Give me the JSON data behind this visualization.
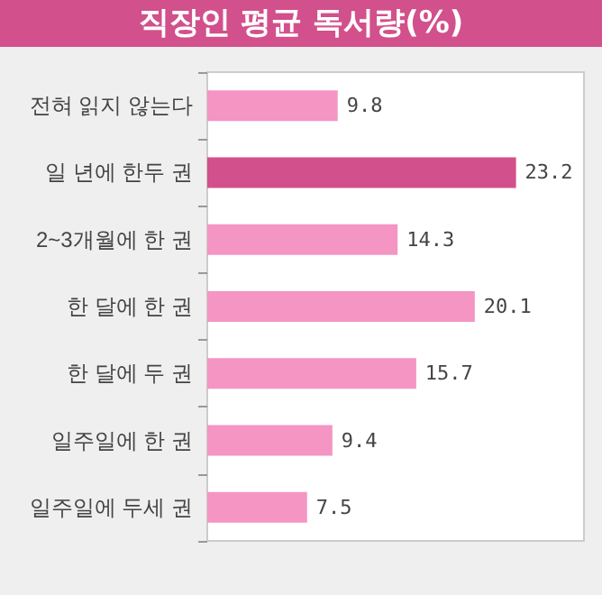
{
  "chart_data": {
    "type": "bar",
    "orientation": "horizontal",
    "title": "직장인 평균 독서량(%)",
    "categories": [
      "전혀 읽지 않는다",
      "일 년에 한두 권",
      "2~3개월에 한 권",
      "한 달에 한 권",
      "한 달에 두 권",
      "일주일에 한 권",
      "일주일에 두세 권"
    ],
    "values": [
      9.8,
      23.2,
      14.3,
      20.1,
      15.7,
      9.4,
      7.5
    ],
    "colors": [
      "#f495c4",
      "#d2508b",
      "#f495c4",
      "#f495c4",
      "#f495c4",
      "#f495c4",
      "#f495c4"
    ],
    "data_labels": true
  }
}
